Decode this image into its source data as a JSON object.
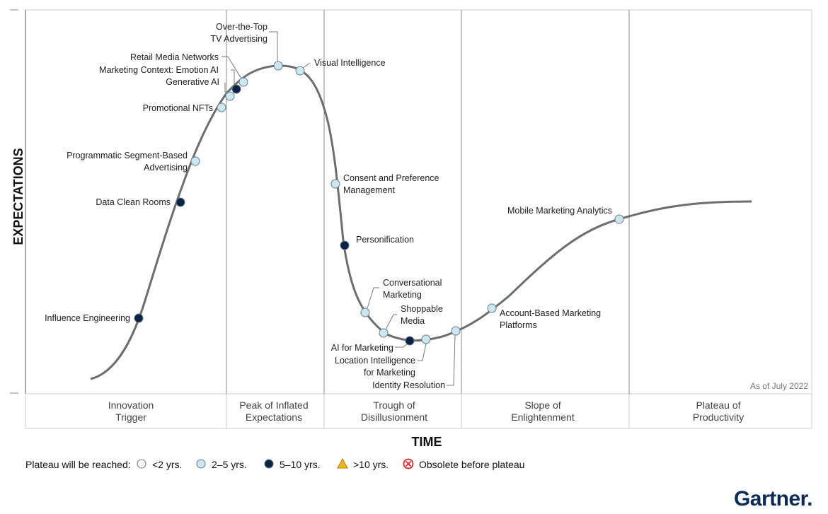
{
  "chart_data": {
    "type": "hype-cycle",
    "title": "",
    "xlabel": "TIME",
    "ylabel": "EXPECTATIONS",
    "as_of": "As of July 2022",
    "phases": [
      {
        "lines": [
          "Innovation",
          "Trigger"
        ]
      },
      {
        "lines": [
          "Peak of Inflated",
          "Expectations"
        ]
      },
      {
        "lines": [
          "Trough of",
          "Disillusionment"
        ]
      },
      {
        "lines": [
          "Slope of",
          "Enlightenment"
        ]
      },
      {
        "lines": [
          "Plateau of",
          "Productivity"
        ]
      }
    ],
    "points": [
      {
        "lines": [
          "Influence Engineering"
        ],
        "category": "5-10"
      },
      {
        "lines": [
          "Data Clean Rooms"
        ],
        "category": "5-10"
      },
      {
        "lines": [
          "Programmatic Segment-Based",
          "Advertising"
        ],
        "category": "2-5"
      },
      {
        "lines": [
          "Promotional NFTs"
        ],
        "category": "2-5"
      },
      {
        "lines": [
          "Generative AI"
        ],
        "category": "2-5"
      },
      {
        "lines": [
          "Marketing Context: Emotion AI"
        ],
        "category": "5-10"
      },
      {
        "lines": [
          "Retail Media Networks"
        ],
        "category": "2-5"
      },
      {
        "lines": [
          "Over-the-Top",
          "TV Advertising"
        ],
        "category": "2-5"
      },
      {
        "lines": [
          "Visual Intelligence"
        ],
        "category": "2-5"
      },
      {
        "lines": [
          "Consent and Preference",
          "Management"
        ],
        "category": "2-5"
      },
      {
        "lines": [
          "Personification"
        ],
        "category": "5-10"
      },
      {
        "lines": [
          "Conversational",
          "Marketing"
        ],
        "category": "2-5"
      },
      {
        "lines": [
          "Shoppable",
          "Media"
        ],
        "category": "2-5"
      },
      {
        "lines": [
          "AI for Marketing"
        ],
        "category": "5-10"
      },
      {
        "lines": [
          "Location Intelligence",
          "for Marketing"
        ],
        "category": "2-5"
      },
      {
        "lines": [
          "Identity Resolution"
        ],
        "category": "2-5"
      },
      {
        "lines": [
          "Account-Based Marketing",
          "Platforms"
        ],
        "category": "2-5"
      },
      {
        "lines": [
          "Mobile Marketing Analytics"
        ],
        "category": "2-5"
      }
    ],
    "legend": {
      "title": "Plateau will be reached:",
      "items": [
        {
          "key": "lt2",
          "label": "<2 yrs."
        },
        {
          "key": "2-5",
          "label": "2–5 yrs."
        },
        {
          "key": "5-10",
          "label": "5–10 yrs."
        },
        {
          "key": "gt10",
          "label": ">10 yrs."
        },
        {
          "key": "obsolete",
          "label": "Obsolete before plateau"
        }
      ]
    }
  },
  "colors": {
    "curve": "#6b6f6f",
    "lt2": "#ffffff",
    "2-5": "#c9e8f2",
    "5-10": "#0b2346",
    "gt10": "#f2b422",
    "obsolete": "#e0262b",
    "frame": "#c8c8c8",
    "divider": "#8a8a8a"
  },
  "brand": {
    "logo": "Gartner."
  }
}
